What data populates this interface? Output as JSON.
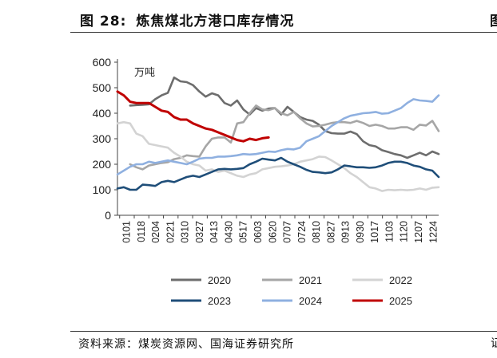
{
  "figure": {
    "number": "图 28:",
    "title": "炼焦煤北方港口库存情况",
    "source": "资料来源：煤炭资源网、国海证券研究所",
    "edge_glyph_top": "图",
    "edge_glyph_bottom": "证"
  },
  "chart_data": {
    "type": "line",
    "title": "炼焦煤北方港口库存情况",
    "unit_label": "万吨",
    "ylim": [
      0,
      600
    ],
    "yticks": [
      0,
      100,
      200,
      300,
      400,
      500,
      600
    ],
    "xlabel": "",
    "ylabel": "万吨",
    "x_tick_labels": [
      "0101",
      "0118",
      "0204",
      "0221",
      "0310",
      "0327",
      "0413",
      "0430",
      "0517",
      "0603",
      "0620",
      "0707",
      "0724",
      "0810",
      "0827",
      "0913",
      "0930",
      "1017",
      "1103",
      "1120",
      "1207",
      "1224"
    ],
    "x_count": 52,
    "legend_position": "bottom",
    "series": [
      {
        "name": "2020",
        "color": "#6d6d6d",
        "values": [
          null,
          null,
          430,
          432,
          433,
          435,
          455,
          470,
          480,
          540,
          525,
          522,
          510,
          485,
          465,
          478,
          470,
          440,
          430,
          450,
          415,
          395,
          420,
          410,
          418,
          420,
          395,
          425,
          405,
          385,
          375,
          370,
          355,
          330,
          322,
          320,
          320,
          328,
          318,
          290,
          275,
          270,
          255,
          248,
          240,
          235,
          225,
          235,
          245,
          235,
          250,
          240
        ]
      },
      {
        "name": "2021",
        "color": "#a6a6a6",
        "values": [
          null,
          null,
          200,
          188,
          180,
          195,
          200,
          205,
          208,
          220,
          225,
          235,
          232,
          230,
          270,
          300,
          305,
          305,
          285,
          360,
          365,
          400,
          430,
          415,
          412,
          420,
          400,
          392,
          405,
          380,
          360,
          348,
          350,
          355,
          362,
          365,
          365,
          362,
          370,
          362,
          350,
          355,
          350,
          340,
          340,
          345,
          345,
          335,
          355,
          352,
          370,
          330
        ]
      },
      {
        "name": "2022",
        "color": "#d3d3d3",
        "values": [
          360,
          365,
          360,
          320,
          310,
          280,
          275,
          270,
          265,
          245,
          230,
          210,
          200,
          195,
          175,
          180,
          170,
          175,
          165,
          155,
          150,
          160,
          165,
          180,
          185,
          190,
          192,
          195,
          200,
          210,
          215,
          220,
          230,
          228,
          215,
          200,
          185,
          165,
          150,
          130,
          110,
          105,
          95,
          100,
          98,
          100,
          98,
          100,
          105,
          100,
          108,
          110
        ]
      },
      {
        "name": "2023",
        "color": "#1f4e79",
        "values": [
          105,
          110,
          100,
          100,
          120,
          118,
          115,
          130,
          135,
          130,
          140,
          150,
          155,
          150,
          160,
          170,
          180,
          182,
          180,
          182,
          185,
          200,
          210,
          222,
          218,
          215,
          225,
          210,
          200,
          190,
          178,
          170,
          168,
          165,
          168,
          180,
          195,
          192,
          188,
          188,
          186,
          188,
          195,
          205,
          210,
          210,
          205,
          195,
          190,
          180,
          175,
          150
        ]
      },
      {
        "name": "2024",
        "color": "#8fb0e0",
        "values": [
          160,
          175,
          190,
          200,
          200,
          210,
          205,
          210,
          215,
          210,
          205,
          200,
          210,
          222,
          225,
          225,
          230,
          230,
          232,
          235,
          240,
          238,
          240,
          245,
          250,
          248,
          255,
          260,
          258,
          265,
          290,
          300,
          310,
          330,
          350,
          365,
          380,
          390,
          395,
          400,
          402,
          405,
          398,
          400,
          410,
          420,
          440,
          455,
          450,
          448,
          445,
          470
        ]
      },
      {
        "name": "2025",
        "color": "#c00000",
        "values": [
          485,
          470,
          445,
          440,
          440,
          440,
          425,
          410,
          405,
          385,
          375,
          375,
          360,
          350,
          340,
          335,
          325,
          315,
          305,
          295,
          290,
          300,
          295,
          302,
          305,
          null,
          null,
          null,
          null,
          null,
          null,
          null,
          null,
          null,
          null,
          null,
          null,
          null,
          null,
          null,
          null,
          null,
          null,
          null,
          null,
          null,
          null,
          null,
          null,
          null,
          null,
          null
        ]
      }
    ]
  }
}
